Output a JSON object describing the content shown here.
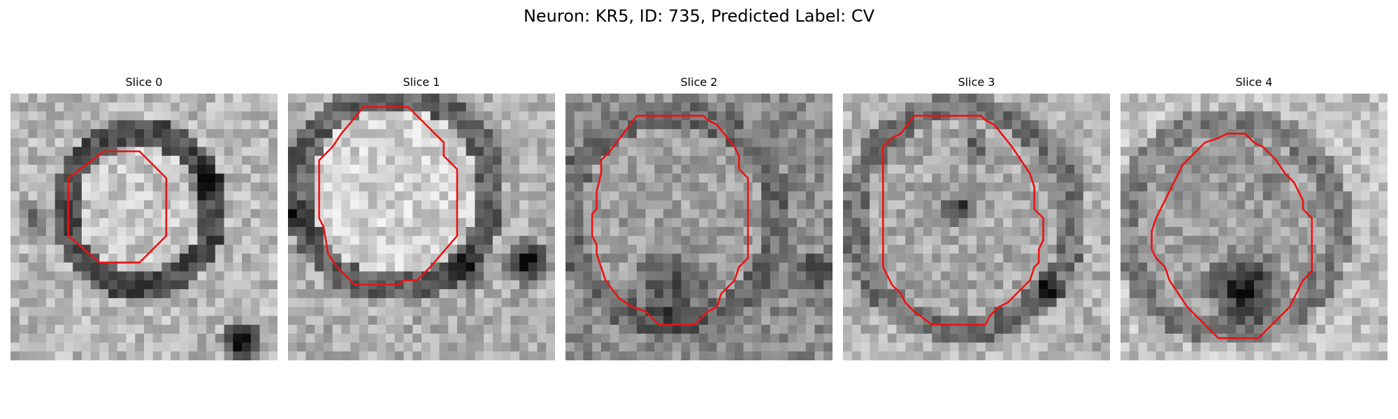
{
  "figure": {
    "title": "Neuron: KR5, ID: 735, Predicted Label: CV",
    "contour_color": "#ee1111",
    "panels": [
      {
        "label": "Slice 0",
        "image": "grayscale-microscopy-crop",
        "contour": [
          [
            10.5,
            6.5
          ],
          [
            14.5,
            6.5
          ],
          [
            17.5,
            9.5
          ],
          [
            17.5,
            16
          ],
          [
            14.5,
            19
          ],
          [
            10,
            19
          ],
          [
            6.5,
            16
          ],
          [
            6.5,
            9.5
          ]
        ]
      },
      {
        "label": "Slice 1",
        "image": "grayscale-microscopy-crop",
        "contour": [
          [
            8.5,
            1.5
          ],
          [
            13.5,
            1.5
          ],
          [
            17.5,
            5.5
          ],
          [
            17.5,
            7
          ],
          [
            19,
            8.5
          ],
          [
            19,
            16
          ],
          [
            16,
            19.5
          ],
          [
            14.5,
            21
          ],
          [
            13,
            21
          ],
          [
            12.5,
            21.5
          ],
          [
            7.5,
            21.5
          ],
          [
            5.5,
            19.5
          ],
          [
            4.5,
            18
          ],
          [
            4,
            15
          ],
          [
            3.5,
            14
          ],
          [
            3.5,
            7.5
          ],
          [
            5,
            6
          ],
          [
            6,
            4.5
          ]
        ]
      },
      {
        "label": "Slice 2",
        "image": "grayscale-microscopy-crop",
        "contour": [
          [
            8,
            2.5
          ],
          [
            15.5,
            2.5
          ],
          [
            16,
            3
          ],
          [
            17,
            3.5
          ],
          [
            19,
            6
          ],
          [
            19.5,
            7
          ],
          [
            19.5,
            8.5
          ],
          [
            20.5,
            9.5
          ],
          [
            20.5,
            18.5
          ],
          [
            19.5,
            19.5
          ],
          [
            19,
            21
          ],
          [
            17.5,
            22.5
          ],
          [
            17,
            24
          ],
          [
            16,
            24.5
          ],
          [
            14.5,
            26
          ],
          [
            10.5,
            26
          ],
          [
            9,
            24.5
          ],
          [
            7.5,
            24
          ],
          [
            6,
            23
          ],
          [
            4.5,
            21
          ],
          [
            4,
            19.5
          ],
          [
            3.5,
            18
          ],
          [
            3.5,
            17
          ],
          [
            3,
            16
          ],
          [
            3,
            13.5
          ],
          [
            3.5,
            13
          ],
          [
            3.5,
            11
          ],
          [
            4,
            9
          ],
          [
            4,
            7.5
          ],
          [
            5,
            6.5
          ]
        ]
      },
      {
        "label": "Slice 3",
        "image": "grayscale-microscopy-crop",
        "contour": [
          [
            8,
            2.5
          ],
          [
            15.5,
            2.5
          ],
          [
            16,
            3
          ],
          [
            17,
            3.5
          ],
          [
            19,
            6
          ],
          [
            20,
            7.5
          ],
          [
            21,
            9
          ],
          [
            21.5,
            10.5
          ],
          [
            21.5,
            13
          ],
          [
            22.5,
            14
          ],
          [
            22.5,
            16.5
          ],
          [
            22,
            17.5
          ],
          [
            22,
            19
          ],
          [
            21.5,
            19.5
          ],
          [
            21,
            21
          ],
          [
            18.5,
            23.5
          ],
          [
            17.5,
            24
          ],
          [
            16.5,
            25
          ],
          [
            16,
            26
          ],
          [
            10,
            26
          ],
          [
            8,
            24.5
          ],
          [
            7,
            23.5
          ],
          [
            6.5,
            22.5
          ],
          [
            5.5,
            21.5
          ],
          [
            5,
            20.5
          ],
          [
            4.5,
            19.5
          ],
          [
            4.5,
            6
          ],
          [
            5.5,
            5
          ],
          [
            6.5,
            4.5
          ]
        ]
      },
      {
        "label": "Slice 4",
        "image": "grayscale-microscopy-crop",
        "contour": [
          [
            12,
            4.5
          ],
          [
            14,
            4.5
          ],
          [
            15,
            5.5
          ],
          [
            16,
            6
          ],
          [
            17.5,
            7.5
          ],
          [
            18.5,
            9
          ],
          [
            19.5,
            10
          ],
          [
            20,
            11
          ],
          [
            20.5,
            12
          ],
          [
            20.5,
            13
          ],
          [
            21.5,
            14
          ],
          [
            21.5,
            20
          ],
          [
            20.5,
            21
          ],
          [
            20,
            22
          ],
          [
            19.5,
            23
          ],
          [
            19,
            24
          ],
          [
            17.5,
            25.5
          ],
          [
            16.5,
            26.5
          ],
          [
            15.5,
            27.5
          ],
          [
            11,
            27.5
          ],
          [
            9,
            25.5
          ],
          [
            7.5,
            24
          ],
          [
            6.5,
            22.5
          ],
          [
            5.5,
            21
          ],
          [
            5,
            19.5
          ],
          [
            4,
            18.5
          ],
          [
            3.5,
            17.5
          ],
          [
            3.5,
            15.5
          ],
          [
            4,
            14
          ],
          [
            4.5,
            13
          ],
          [
            5,
            12
          ],
          [
            6,
            10
          ],
          [
            7,
            8
          ],
          [
            8.5,
            6.5
          ],
          [
            9.5,
            5.5
          ],
          [
            11,
            5
          ]
        ]
      }
    ]
  }
}
